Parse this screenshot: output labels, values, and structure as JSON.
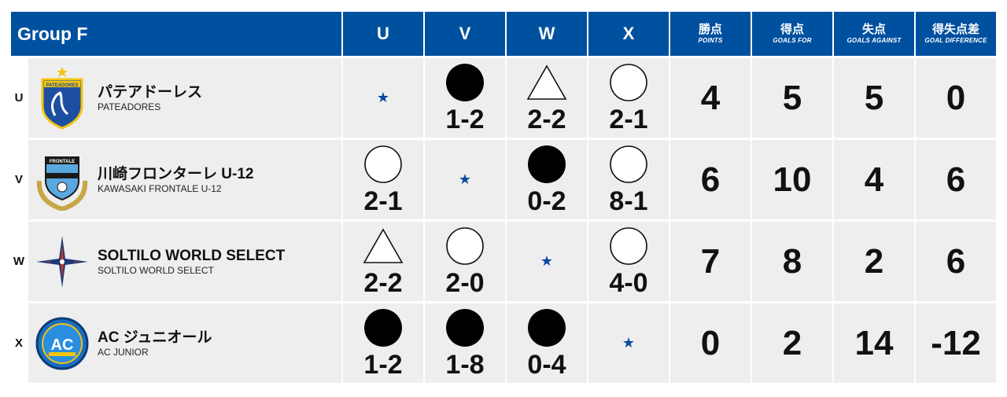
{
  "group_title": "Group F",
  "opponents": [
    "U",
    "V",
    "W",
    "X"
  ],
  "stat_headers": [
    {
      "jp": "勝点",
      "en": "POINTS"
    },
    {
      "jp": "得点",
      "en": "GOALS FOR"
    },
    {
      "jp": "失点",
      "en": "GOALS AGAINST"
    },
    {
      "jp": "得失点差",
      "en": "GOAL DIFFERENCE"
    }
  ],
  "self_mark": "★",
  "teams": [
    {
      "key": "U",
      "name_jp": "パテアドーレス",
      "name_en": "PATEADORES",
      "logo_text": "PATEADORES",
      "results": [
        {
          "type": "self",
          "score": ""
        },
        {
          "type": "loss",
          "score": "1-2"
        },
        {
          "type": "draw",
          "score": "2-2"
        },
        {
          "type": "win",
          "score": "2-1"
        }
      ],
      "points": "4",
      "goals_for": "5",
      "goals_against": "5",
      "goal_diff": "0"
    },
    {
      "key": "V",
      "name_jp": "川崎フロンターレ U-12",
      "name_en": "KAWASAKI FRONTALE U-12",
      "logo_text": "FRONTALE",
      "results": [
        {
          "type": "win",
          "score": "2-1"
        },
        {
          "type": "self",
          "score": ""
        },
        {
          "type": "loss",
          "score": "0-2"
        },
        {
          "type": "win",
          "score": "8-1"
        }
      ],
      "points": "6",
      "goals_for": "10",
      "goals_against": "4",
      "goal_diff": "6"
    },
    {
      "key": "W",
      "name_jp": "SOLTILO WORLD SELECT",
      "name_en": "SOLTILO WORLD SELECT",
      "logo_text": "",
      "results": [
        {
          "type": "draw",
          "score": "2-2"
        },
        {
          "type": "win",
          "score": "2-0"
        },
        {
          "type": "self",
          "score": ""
        },
        {
          "type": "win",
          "score": "4-0"
        }
      ],
      "points": "7",
      "goals_for": "8",
      "goals_against": "2",
      "goal_diff": "6"
    },
    {
      "key": "X",
      "name_jp": "AC ジュニオール",
      "name_en": "AC JUNIOR",
      "logo_text": "AC",
      "results": [
        {
          "type": "loss",
          "score": "1-2"
        },
        {
          "type": "loss",
          "score": "1-8"
        },
        {
          "type": "loss",
          "score": "0-4"
        },
        {
          "type": "self",
          "score": ""
        }
      ],
      "points": "0",
      "goals_for": "2",
      "goals_against": "14",
      "goal_diff": "-12"
    }
  ],
  "colors": {
    "header_bg": "#0050a0",
    "cell_bg": "#eeeeee",
    "star": "#0a4aa0"
  }
}
